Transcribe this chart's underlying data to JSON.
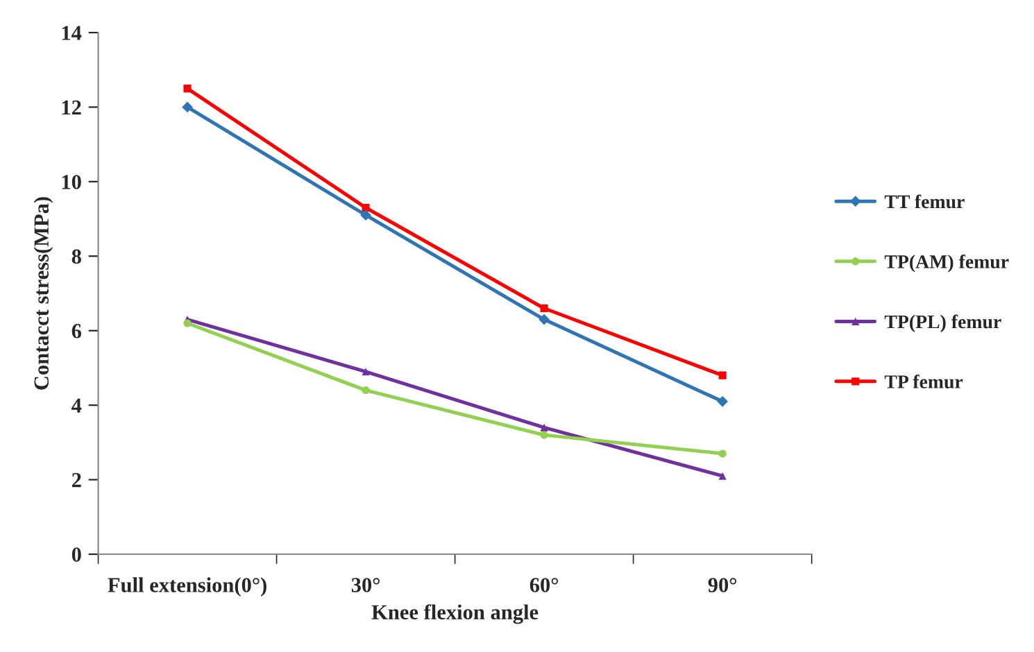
{
  "chart_data": {
    "type": "line",
    "xlabel": "Knee flexion angle",
    "ylabel": "Contacct stress(MPa)",
    "categories": [
      "Full extension(0°)",
      "30°",
      "60°",
      "90°"
    ],
    "ylim": [
      0,
      14
    ],
    "yticks": [
      0,
      2,
      4,
      6,
      8,
      10,
      12,
      14
    ],
    "grid": false,
    "legend": "right",
    "series": [
      {
        "name": "TT femur",
        "color": "#2e75b6",
        "marker": "diamond",
        "values": [
          12.0,
          9.1,
          6.3,
          4.1
        ]
      },
      {
        "name": "TP(AM) femur",
        "color": "#92d050",
        "marker": "circle",
        "values": [
          6.2,
          4.4,
          3.2,
          2.7
        ]
      },
      {
        "name": "TP(PL) femur",
        "color": "#7030a0",
        "marker": "triangle",
        "values": [
          6.3,
          4.9,
          3.4,
          2.1
        ]
      },
      {
        "name": "TP femur",
        "color": "#ff0000",
        "marker": "square",
        "values": [
          12.5,
          9.3,
          6.6,
          4.8
        ]
      }
    ]
  }
}
